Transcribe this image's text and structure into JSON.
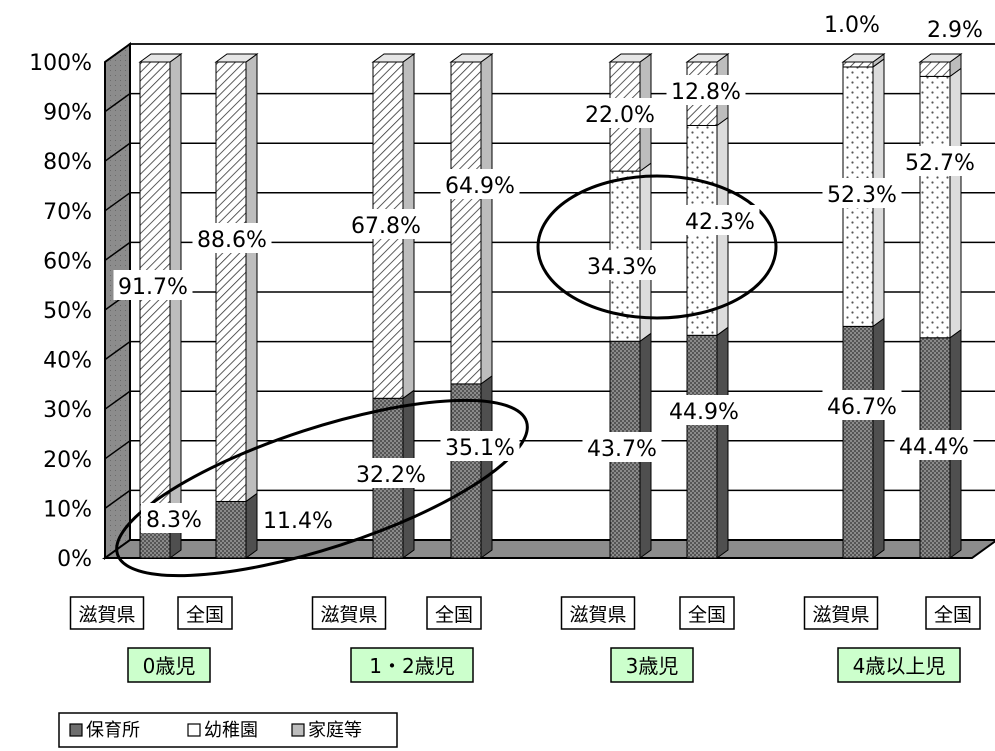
{
  "chart_data": {
    "type": "bar",
    "stacked": true,
    "percent_stacked": true,
    "style": "3d-column",
    "ylim": [
      0,
      100
    ],
    "y_ticks": [
      "0%",
      "10%",
      "20%",
      "30%",
      "40%",
      "50%",
      "60%",
      "70%",
      "80%",
      "90%",
      "100%"
    ],
    "grid": true,
    "legend_position": "bottom-left",
    "groups": [
      "0歳児",
      "1・2歳児",
      "3歳児",
      "4歳以上児"
    ],
    "categories": [
      "滋賀県",
      "全国",
      "滋賀県",
      "全国",
      "滋賀県",
      "全国",
      "滋賀県",
      "全国"
    ],
    "series": [
      {
        "name": "保育所",
        "values": [
          8.3,
          11.4,
          32.2,
          35.1,
          43.7,
          44.9,
          46.7,
          44.4
        ],
        "labels": [
          "8.3%",
          "11.4%",
          "32.2%",
          "35.1%",
          "43.7%",
          "44.9%",
          "46.7%",
          "44.4%"
        ]
      },
      {
        "name": "幼稚園",
        "values": [
          0,
          0,
          0,
          0,
          34.3,
          42.3,
          52.3,
          52.7
        ],
        "labels": [
          "",
          "",
          "",
          "",
          "34.3%",
          "42.3%",
          "52.3%",
          "52.7%"
        ]
      },
      {
        "name": "家庭等",
        "values": [
          91.7,
          88.6,
          67.8,
          64.9,
          22.0,
          12.8,
          1.0,
          2.9
        ],
        "labels": [
          "91.7%",
          "88.6%",
          "67.8%",
          "64.9%",
          "22.0%",
          "12.8%",
          "1.0%",
          "2.9%"
        ]
      }
    ],
    "colors": {
      "保育所": "#7a7a7a",
      "幼稚園": "#ffffff",
      "家庭等": "#ffffff"
    }
  }
}
